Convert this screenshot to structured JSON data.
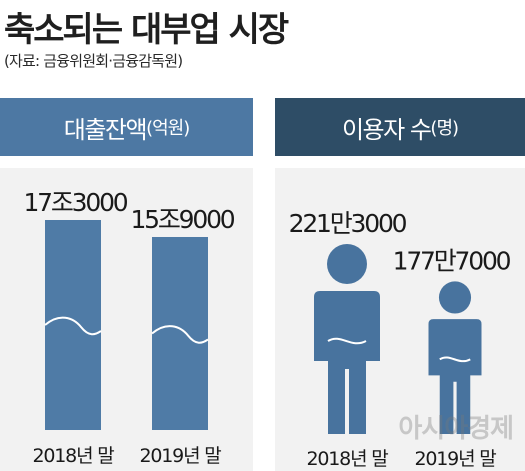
{
  "title": "축소되는 대부업 시장",
  "source": "(자료: 금융위원회·금융감독원)",
  "watermark": "아시아경제",
  "colors": {
    "loan_header": "#4d78a3",
    "users_header": "#2e4d66",
    "bar": "#4f7ba6",
    "person": "#48739e",
    "panel_bg": "#f2f2f2"
  },
  "chart_data": [
    {
      "type": "bar",
      "title": "대출잔액",
      "unit": "(억원)",
      "categories": [
        "2018년 말",
        "2019년 말"
      ],
      "values": [
        173000,
        159000
      ],
      "labels": [
        "17조3000",
        "15조9000"
      ],
      "ylim": [
        0,
        173000
      ]
    },
    {
      "type": "bar",
      "title": "이용자 수",
      "unit": "(명)",
      "icon": "person-icon",
      "categories": [
        "2018년 말",
        "2019년 말"
      ],
      "values": [
        2213000,
        1777000
      ],
      "labels": [
        "221만3000",
        "177만7000"
      ],
      "ylim": [
        0,
        2213000
      ]
    }
  ]
}
